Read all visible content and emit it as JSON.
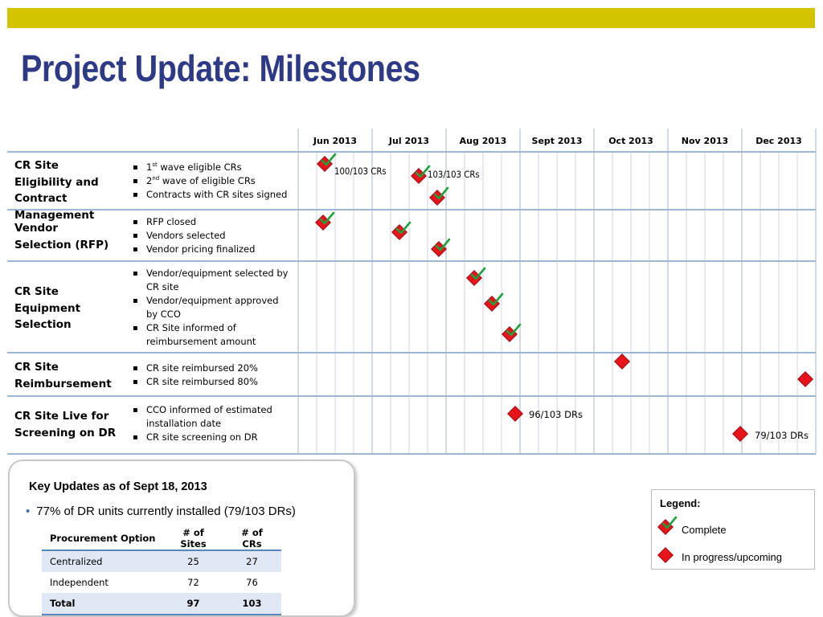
{
  "title": "Project Update: Milestones",
  "months": [
    "Jun 2013",
    "Jul 2013",
    "Aug 2013",
    "Sept 2013",
    "Oct 2013",
    "Nov 2013",
    "Dec 2013"
  ],
  "sections": [
    {
      "category": "CR Site Eligibility and Contract Management",
      "items": [
        "1st wave eligible CRs",
        "2nd wave of eligible CRs",
        "Contracts with CR sites signed"
      ],
      "markers": [
        {
          "date": "2013-06-10",
          "status": "complete",
          "label": "100/103 CRs"
        },
        {
          "date": "2013-07-15",
          "status": "complete",
          "label": "103/103 CRs"
        },
        {
          "date": "2013-07-26",
          "status": "complete",
          "label": ""
        }
      ]
    },
    {
      "category": "Vendor Selection (RFP)",
      "items": [
        "RFP closed",
        "Vendors selected",
        "Vendor pricing finalized"
      ],
      "markers": [
        {
          "date": "2013-06-08",
          "status": "complete",
          "label": ""
        },
        {
          "date": "2013-07-12",
          "status": "complete",
          "label": ""
        },
        {
          "date": "2013-07-26",
          "status": "complete",
          "label": ""
        }
      ]
    },
    {
      "category": "CR Site Equipment Selection",
      "items": [
        "Vendor/equipment selected by CR site",
        "Vendor/equipment approved by CCO",
        "CR Site informed of reimbursement amount"
      ],
      "markers": [
        {
          "date": "2013-08-20",
          "status": "complete",
          "label": ""
        },
        {
          "date": "2013-08-27",
          "status": "complete",
          "label": ""
        },
        {
          "date": "2013-09-05",
          "status": "complete",
          "label": ""
        }
      ]
    },
    {
      "category": "CR Site Reimbursement",
      "items": [
        "CR site reimbursed 20%",
        "CR site reimbursed 80%"
      ],
      "markers": [
        {
          "date": "2013-10-15",
          "status": "upcoming",
          "label": ""
        },
        {
          "date": "2013-12-31",
          "status": "upcoming",
          "label": ""
        }
      ]
    },
    {
      "category": "CR Site Live for Screening on DR",
      "items": [
        "CCO informed of estimated installation date",
        "CR site screening on DR"
      ],
      "markers": [
        {
          "date": "2013-09-05",
          "status": "upcoming",
          "label": "96/103 DRs"
        },
        {
          "date": "2013-12-02",
          "status": "upcoming",
          "label": "79/103 DRs"
        }
      ]
    }
  ],
  "key_updates": {
    "title": "Key Updates as of Sept 18, 2013",
    "bullet": "77% of DR units currently installed (79/103 DRs)",
    "table": {
      "headers": [
        "Procurement Option",
        "# of Sites",
        "# of CRs"
      ],
      "rows": [
        [
          "Centralized",
          "25",
          "27"
        ],
        [
          "Independent",
          "72",
          "76"
        ]
      ],
      "total": [
        "Total",
        "97",
        "103"
      ]
    }
  },
  "legend": {
    "title": "Legend:",
    "complete": "Complete",
    "upcoming": "In progress/upcoming"
  },
  "colors": {
    "title": "#2f3a86",
    "top_bar": "#d4c400",
    "marker": "#e8131b",
    "check": "#1aa33a",
    "grid_line": "#9fb7d6"
  }
}
